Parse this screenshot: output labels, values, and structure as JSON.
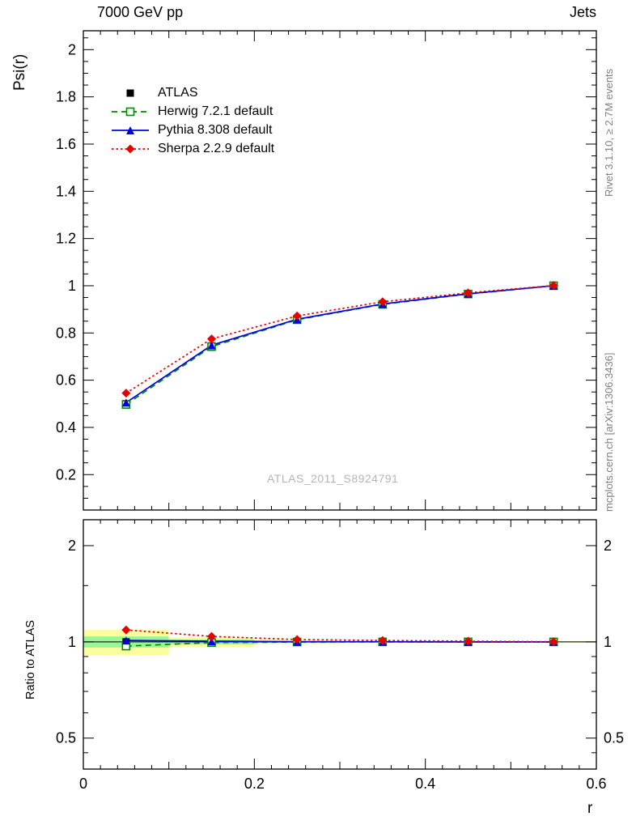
{
  "chart_data": {
    "type": "line",
    "title": "7000 GeV pp",
    "title_right": "Jets",
    "watermark": "ATLAS_2011_S8924791",
    "side_text_top": "Rivet 3.1.10, ≥ 2.7M events",
    "side_text_bottom": "mcplots.cern.ch [arXiv:1306.3436]",
    "x_axis": {
      "label": "r",
      "lim": [
        0,
        0.6
      ],
      "major": [
        0,
        0.2,
        0.4,
        0.6
      ],
      "major_labels": [
        "0",
        "0.2",
        "0.4",
        "0.6"
      ],
      "medium": [
        0.1,
        0.3,
        0.5
      ],
      "minor_step": 0.02
    },
    "y_main": {
      "label": "Psi(r)",
      "lim": [
        0.05,
        2.08
      ],
      "major": [
        0.2,
        0.4,
        0.6,
        0.8,
        1,
        1.2,
        1.4,
        1.6,
        1.8,
        2
      ],
      "labels": [
        "0.2",
        "0.4",
        "0.6",
        "0.8",
        "1",
        "1.2",
        "1.4",
        "1.6",
        "1.8",
        "2"
      ],
      "minor_step": 0.05
    },
    "y_ratio": {
      "label": "Ratio to ATLAS",
      "scale": "log",
      "lim": [
        0.4,
        2.41
      ],
      "major": [
        0.5,
        1,
        2
      ],
      "labels": [
        "0.5",
        "1",
        "2"
      ],
      "minor": [
        0.45,
        0.6,
        0.7,
        0.8,
        0.9,
        1.5
      ]
    },
    "x": [
      0.05,
      0.15,
      0.25,
      0.35,
      0.45,
      0.55
    ],
    "series": [
      {
        "name": "ATLAS",
        "color": "#000000",
        "line": "none",
        "marker": "filled-square",
        "values": [
          0.5,
          0.745,
          0.857,
          0.922,
          0.965,
          1.0
        ],
        "ratio": [
          1.0,
          1.0,
          1.0,
          1.0,
          1.0,
          1.0
        ]
      },
      {
        "name": "Herwig 7.2.1 default",
        "color": "#008a00",
        "line": "dashed",
        "marker": "open-square",
        "values": [
          0.497,
          0.742,
          0.856,
          0.921,
          0.965,
          1.0
        ],
        "ratio": [
          0.97,
          0.995,
          0.999,
          1.0,
          1.0,
          1.0
        ]
      },
      {
        "name": "Pythia 8.308 default",
        "color": "#0000e6",
        "line": "solid",
        "marker": "filled-triangle",
        "values": [
          0.505,
          0.748,
          0.858,
          0.923,
          0.966,
          1.0
        ],
        "ratio": [
          1.01,
          1.005,
          1.001,
          1.001,
          1.0,
          1.0
        ]
      },
      {
        "name": "Sherpa 2.2.9 default",
        "color": "#e60000",
        "line": "dotted",
        "marker": "filled-diamond",
        "values": [
          0.545,
          0.775,
          0.872,
          0.932,
          0.97,
          1.001
        ],
        "ratio": [
          1.09,
          1.04,
          1.017,
          1.01,
          1.005,
          1.001
        ]
      }
    ],
    "band_edges": [
      0,
      0.1,
      0.2,
      0.3,
      0.4,
      0.5,
      0.6
    ],
    "band_yellow": [
      [
        0.91,
        1.09
      ],
      [
        0.965,
        1.035
      ],
      [
        0.985,
        1.015
      ],
      [
        0.99,
        1.01
      ],
      [
        0.993,
        1.007
      ],
      [
        0.995,
        1.005
      ]
    ],
    "band_green": [
      [
        0.96,
        1.04
      ],
      [
        0.982,
        1.018
      ],
      [
        0.992,
        1.008
      ],
      [
        0.995,
        1.005
      ],
      [
        0.996,
        1.004
      ],
      [
        0.997,
        1.003
      ]
    ],
    "colors": {
      "band_yellow": "#fdfda0",
      "band_green": "#97f797",
      "frame": "#000000"
    }
  }
}
